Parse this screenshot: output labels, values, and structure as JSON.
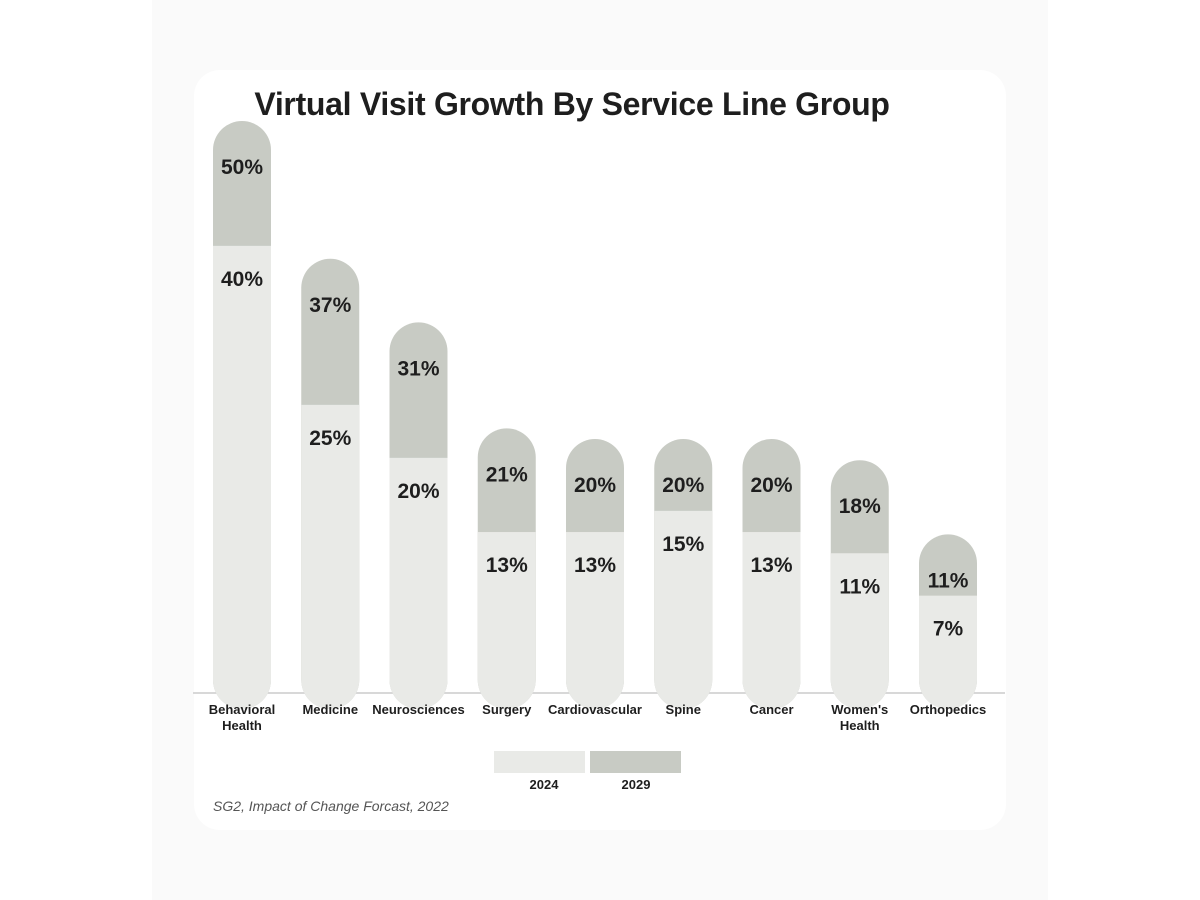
{
  "chart_data": {
    "type": "bar",
    "title": "Virtual Visit Growth By Service Line Group",
    "categories": [
      [
        "Behavioral",
        "Health"
      ],
      [
        "Medicine"
      ],
      [
        "Neurosciences"
      ],
      [
        "Surgery"
      ],
      [
        "Cardiovascular"
      ],
      [
        "Spine"
      ],
      [
        "Cancer"
      ],
      [
        "Women's",
        "Health"
      ],
      [
        "Orthopedics"
      ]
    ],
    "series": [
      {
        "name": "2024",
        "values": [
          40,
          25,
          20,
          13,
          13,
          15,
          13,
          11,
          7
        ],
        "labels": [
          "40%",
          "25%",
          "20%",
          "13%",
          "13%",
          "15%",
          "13%",
          "11%",
          "7%"
        ]
      },
      {
        "name": "2029",
        "values": [
          50,
          37,
          31,
          21,
          20,
          20,
          20,
          18,
          11
        ],
        "labels": [
          "50%",
          "37%",
          "31%",
          "21%",
          "20%",
          "20%",
          "20%",
          "18%",
          "11%"
        ]
      }
    ],
    "xlabel": "",
    "ylabel": "",
    "ylim": [
      0,
      50
    ],
    "legend": "bottom-center"
  },
  "legend": {
    "label_2024": "2024",
    "label_2029": "2029"
  },
  "colors": {
    "light": "#e9eae7",
    "dark": "#c8cbc4",
    "text": "#1e1e1e",
    "axis": "#cccccc"
  },
  "source": "SG2, Impact of Change Forcast, 2022"
}
